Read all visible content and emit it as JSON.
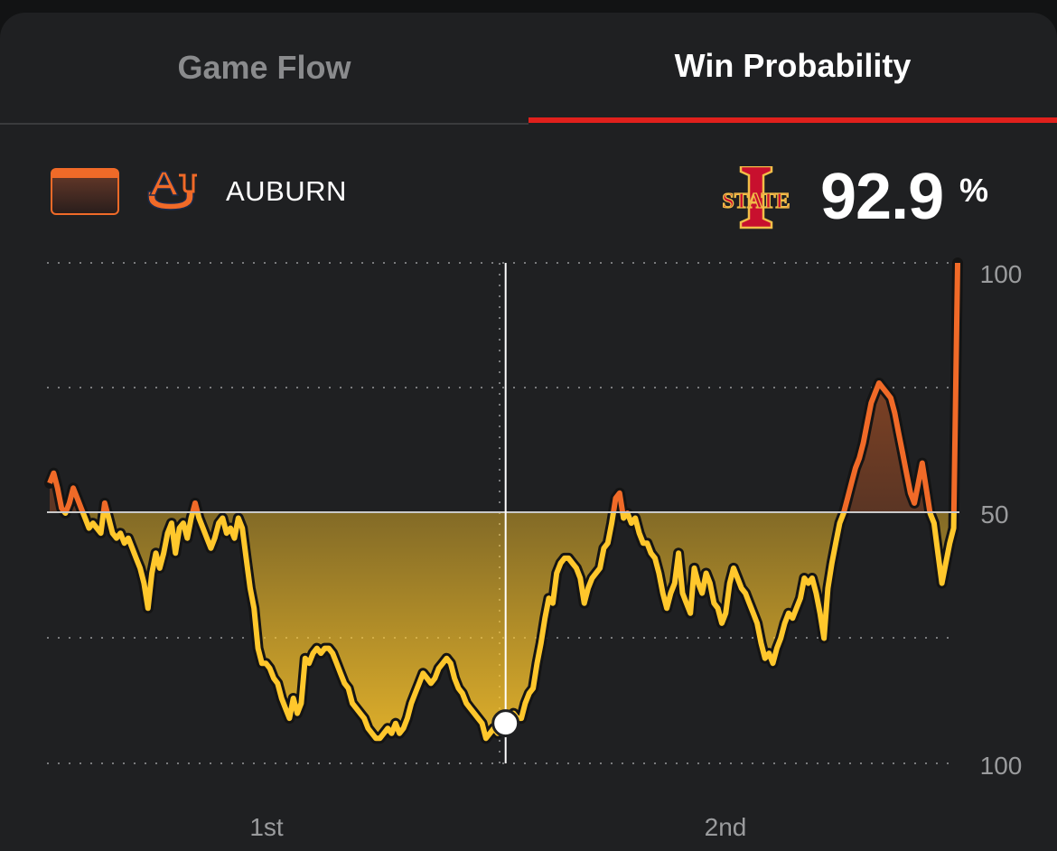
{
  "tabs": [
    {
      "label": "Game Flow",
      "active": false
    },
    {
      "label": "Win Probability",
      "active": true
    }
  ],
  "colors": {
    "accent": "#e0201c",
    "auburn": "#f06a28",
    "iowa_state": "#ffc72c",
    "background": "#1f2022"
  },
  "team": {
    "left_name": "AUBURN",
    "left_logo": "auburn-au-logo",
    "right_logo": "iowa-state-i-state-logo",
    "right_logo_text": "STATE",
    "probability": "92.9",
    "probability_unit": "%"
  },
  "chart_data": {
    "type": "line",
    "title": "",
    "xlabel": "",
    "ylabel": "",
    "x_labels": [
      "1st",
      "2nd"
    ],
    "y_ticks": [
      "100",
      "50",
      "100"
    ],
    "ylim": [
      -50,
      50
    ],
    "y_meaning": "Auburn win probability minus 50 (positive = Auburn favored, negative = Iowa State favored)",
    "grid": true,
    "scrubber_position": 0.5,
    "series": [
      {
        "values": [
          6,
          8,
          5,
          1,
          0,
          2,
          5,
          3,
          1,
          -1,
          -3,
          -2,
          -3,
          -4,
          2,
          -1,
          -4,
          -5,
          -4,
          -6,
          -5,
          -7,
          -9,
          -11,
          -14,
          -19,
          -12,
          -8,
          -11,
          -8,
          -4,
          -2,
          -8,
          -3,
          -2,
          -5,
          -1,
          2,
          -1,
          -3,
          -5,
          -7,
          -5,
          -2,
          -1,
          -4,
          -3,
          -5,
          -1,
          -3,
          -9,
          -15,
          -19,
          -27,
          -30,
          -30,
          -31,
          -33,
          -34,
          -37,
          -39,
          -41,
          -37,
          -40,
          -38,
          -29,
          -30,
          -28,
          -27,
          -28,
          -27,
          -27,
          -28,
          -30,
          -32,
          -34,
          -35,
          -38,
          -39,
          -40,
          -41,
          -43,
          -44,
          -45,
          -45,
          -44,
          -43,
          -44,
          -42,
          -44,
          -43,
          -41,
          -38,
          -36,
          -34,
          -32,
          -33,
          -34,
          -33,
          -31,
          -30,
          -29,
          -30,
          -33,
          -35,
          -36,
          -38,
          -39,
          -40,
          -41,
          -42,
          -45,
          -44,
          -43,
          -44,
          -43,
          -42,
          -41,
          -40,
          -41,
          -41,
          -38,
          -36,
          -35,
          -30,
          -26,
          -21,
          -17,
          -18,
          -12,
          -10,
          -9,
          -9,
          -10,
          -11,
          -13,
          -18,
          -15,
          -13,
          -12,
          -11,
          -7,
          -6,
          -2,
          3,
          4,
          -1,
          0,
          -2,
          -1,
          -4,
          -6,
          -6,
          -8,
          -9,
          -12,
          -16,
          -19,
          -16,
          -14,
          -8,
          -16,
          -18,
          -20,
          -11,
          -14,
          -16,
          -12,
          -14,
          -18,
          -19,
          -22,
          -20,
          -14,
          -11,
          -13,
          -15,
          -16,
          -18,
          -20,
          -22,
          -26,
          -29,
          -28,
          -30,
          -27,
          -25,
          -22,
          -20,
          -21,
          -19,
          -17,
          -13,
          -14,
          -13,
          -16,
          -20,
          -25,
          -15,
          -10,
          -6,
          -2,
          0,
          3,
          6,
          9,
          11,
          14,
          18,
          22,
          24,
          26,
          25,
          24,
          23,
          20,
          16,
          12,
          8,
          4,
          2,
          6,
          10,
          5,
          0,
          -2,
          -8,
          -14,
          -10,
          -6,
          -3,
          50
        ]
      }
    ]
  }
}
